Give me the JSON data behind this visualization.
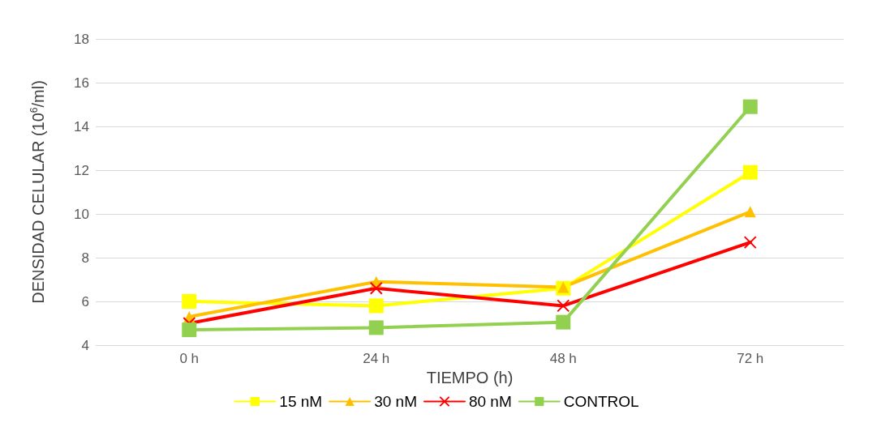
{
  "chart_data": {
    "type": "line",
    "xlabel": "TIEMPO (h)",
    "ylabel": "DENSIDAD CELULAR (10$^{6}$/ml)",
    "categories": [
      "0 h",
      "24 h",
      "48 h",
      "72 h"
    ],
    "series": [
      {
        "name": "15 nM",
        "color": "#ffff00",
        "marker": "square",
        "values": [
          6.0,
          5.8,
          6.6,
          11.9
        ]
      },
      {
        "name": "30 nM",
        "color": "#ffc000",
        "marker": "triangle",
        "values": [
          5.3,
          6.9,
          6.65,
          10.1
        ]
      },
      {
        "name": "80 nM",
        "color": "#ff0000",
        "marker": "cross",
        "values": [
          5.0,
          6.6,
          5.8,
          8.7
        ]
      },
      {
        "name": "CONTROL",
        "color": "#92d050",
        "marker": "square",
        "values": [
          4.7,
          4.8,
          5.05,
          14.9
        ]
      }
    ],
    "ylim": [
      4,
      18
    ],
    "yticks": [
      4,
      6,
      8,
      10,
      12,
      14,
      16,
      18
    ],
    "grid": "y",
    "legend": "bottom",
    "line_style": "solid"
  }
}
